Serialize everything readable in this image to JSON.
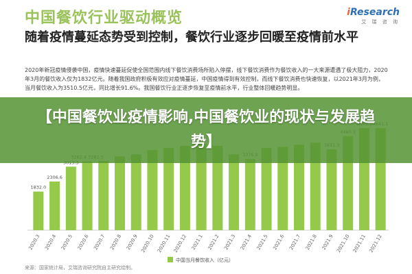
{
  "page_title": "中国餐饮行业驱动概览",
  "brand": {
    "name_main": "i",
    "name_rest": "Research",
    "sub": "艾 瑞 咨 询"
  },
  "headline": "随着疫情蔓延态势受到控制，餐饮行业逐步回暖至疫情前水平",
  "body": "2020年新冠疫情侵袭中国，疫情快速蔓延促使全国范围内线下餐饮消费场所陷入停摆，线下餐饮消费作为餐饮收入的一大来源遭遇了极大阻力，2020年3月的餐饮收入仅为1832亿元。随着我国政府积极有效应对疫情蔓延，中国疫情得到有效控制，而线下餐饮消费也快速恢复，以2021年3月为例，当月餐饮收入为3510.5亿元，同比增长91.6%。我国餐饮行业正逐步恢复至疫情前水平，行业整体回暖趋势明显。",
  "banner": "【中国餐饮业疫情影响,中国餐饮业的现状与发展趋势】",
  "source": "来源：国家统计局，艾瑞咨询研究院自主研究绘制。",
  "colors": {
    "bar": "#94c94a",
    "title": "#9ac25a",
    "banner": "#569436"
  },
  "chart_data": {
    "type": "bar",
    "categories": [
      "2020.3",
      "2020.4",
      "2020.5",
      "2020.6",
      "2020.7",
      "2020.8",
      "2020.9",
      "2020.10",
      "2020.11",
      "2020.12",
      "2021.1",
      "2021.2",
      "2021.3",
      "2021.4",
      "2021.5",
      "2021.6",
      "2021.7",
      "2021.8",
      "2021.9",
      "2021.10",
      "2021.11",
      "2021.12"
    ],
    "values": [
      1832.0,
      2306.6,
      3013.3,
      3262.4,
      3282.5,
      null,
      null,
      null,
      null,
      null,
      null,
      null,
      null,
      3376.9,
      null,
      null,
      null,
      null,
      3831.3,
      4460.3,
      4843.1,
      4841.1
    ],
    "labels": [
      "1832.0",
      "2306.6",
      "3013.3",
      "3262.4 3282.5",
      "",
      "",
      "",
      "",
      "",
      "",
      "",
      "",
      "",
      "3376.9",
      "",
      "",
      "",
      "",
      "3831.3",
      "4460.3",
      "4843.1",
      "4841.1"
    ],
    "legend": "中国当月餐饮收入（亿元）",
    "ylim": [
      0,
      5200
    ]
  }
}
